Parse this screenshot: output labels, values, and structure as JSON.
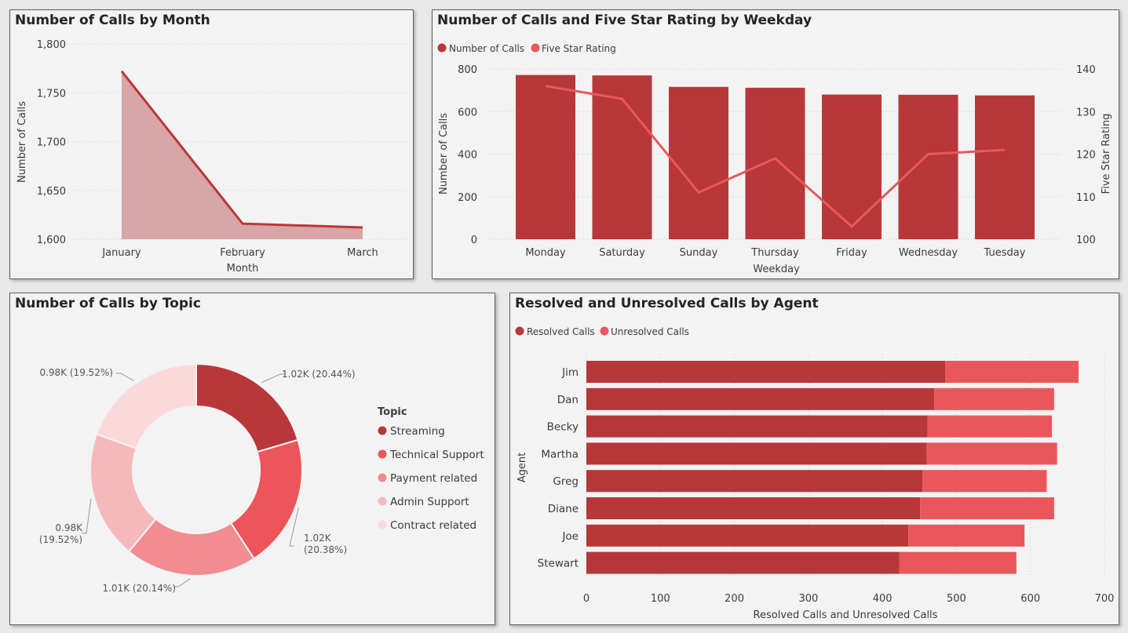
{
  "colors": {
    "dark_red": "#b7373a",
    "red": "#e9575c",
    "line_red": "#e9575c",
    "area_fill": "#d8a6a6",
    "area_line": "#b7373a",
    "topic_colors": [
      "#b7373a",
      "#ec555a",
      "#f18d91",
      "#f6b9bb",
      "#fbd9da"
    ]
  },
  "month_chart": {
    "title": "Number of Calls by Month",
    "chart_data": {
      "type": "area",
      "categories": [
        "January",
        "February",
        "March"
      ],
      "values": [
        1772,
        1616,
        1612
      ],
      "xlabel": "Month",
      "ylabel": "Number of Calls",
      "ylim": [
        1600,
        1800
      ],
      "yticks": [
        1600,
        1650,
        1700,
        1750,
        1800
      ],
      "ytick_labels": [
        "1,600",
        "1,650",
        "1,700",
        "1,750",
        "1,800"
      ],
      "grid": true
    }
  },
  "weekday_chart": {
    "title": "Number of Calls and Five Star Rating by Weekday",
    "legend": [
      "Number of Calls",
      "Five Star Rating"
    ],
    "chart_data": {
      "type": "bar",
      "categories": [
        "Monday",
        "Saturday",
        "Sunday",
        "Thursday",
        "Friday",
        "Wednesday",
        "Tuesday"
      ],
      "series": [
        {
          "name": "Number of Calls",
          "type": "bar",
          "axis": "left",
          "values": [
            772,
            770,
            716,
            712,
            680,
            679,
            676
          ]
        },
        {
          "name": "Five Star Rating",
          "type": "line",
          "axis": "right",
          "values": [
            136,
            133,
            111,
            119,
            103,
            120,
            121
          ]
        }
      ],
      "xlabel": "Weekday",
      "ylabel": "Number of Calls",
      "y2label": "Five Star Rating",
      "ylim": [
        0,
        800
      ],
      "yticks": [
        0,
        200,
        400,
        600,
        800
      ],
      "y2lim": [
        100,
        140
      ],
      "y2ticks": [
        100,
        110,
        120,
        130,
        140
      ],
      "legend_position": "top-left"
    }
  },
  "topic_chart": {
    "title": "Number of Calls by Topic",
    "legend_title": "Topic",
    "chart_data": {
      "type": "pie",
      "donut": true,
      "categories": [
        "Streaming",
        "Technical Support",
        "Payment related",
        "Admin Support",
        "Contract related"
      ],
      "values": [
        1020,
        1020,
        1010,
        980,
        980
      ],
      "percentages": [
        20.44,
        20.38,
        20.14,
        19.52,
        19.52
      ],
      "labels": [
        "1.02K (20.44%)",
        "1.02K (20.38%)",
        "1.01K (20.14%)",
        "0.98K (19.52%)",
        "0.98K (19.52%)"
      ],
      "legend_position": "right"
    }
  },
  "agent_chart": {
    "title": "Resolved and Unresolved Calls by Agent",
    "legend": [
      "Resolved Calls",
      "Unresolved Calls"
    ],
    "chart_data": {
      "type": "bar",
      "orientation": "horizontal",
      "stacked": true,
      "categories": [
        "Jim",
        "Dan",
        "Becky",
        "Martha",
        "Greg",
        "Diane",
        "Joe",
        "Stewart"
      ],
      "series": [
        {
          "name": "Resolved Calls",
          "values": [
            485,
            470,
            461,
            460,
            454,
            451,
            435,
            423
          ]
        },
        {
          "name": "Unresolved Calls",
          "values": [
            180,
            162,
            168,
            176,
            168,
            181,
            157,
            158
          ]
        }
      ],
      "xlabel": "Resolved Calls and Unresolved Calls",
      "ylabel": "Agent",
      "xlim": [
        0,
        700
      ],
      "xticks": [
        0,
        100,
        200,
        300,
        400,
        500,
        600,
        700
      ],
      "legend_position": "top-left"
    }
  }
}
